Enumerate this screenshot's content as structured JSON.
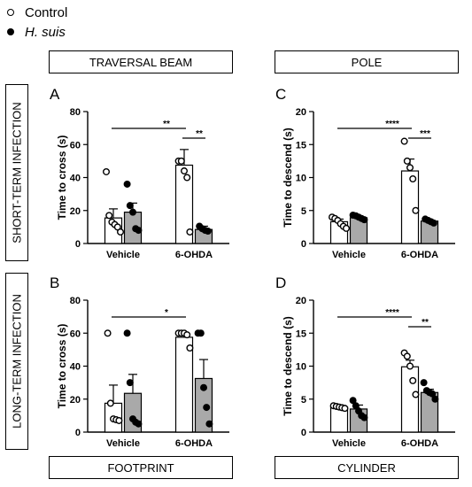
{
  "legend": {
    "control": "Control",
    "infected": "H. suis"
  },
  "headers": {
    "top_left": "TRAVERSAL BEAM",
    "top_right": "POLE",
    "bottom_left": "FOOTPRINT",
    "bottom_right": "CYLINDER",
    "row_top": "SHORT-TERM INFECTION",
    "row_bottom": "LONG-TERM INFECTION"
  },
  "chart_data": [
    {
      "type": "bar",
      "panel_letter": "A",
      "ylabel": "Time to cross (s)",
      "ylim": [
        0,
        80
      ],
      "yticks": [
        0,
        20,
        40,
        60,
        80
      ],
      "categories": [
        "Vehicle",
        "6-OHDA"
      ],
      "series": [
        {
          "name": "Control",
          "means": [
            15.5,
            47.5
          ],
          "sem": [
            5.5,
            9.5
          ],
          "points": [
            [
              43.5,
              17,
              13,
              11.5,
              10,
              7
            ],
            [
              50,
              50,
              44,
              40,
              7
            ]
          ]
        },
        {
          "name": "H. suis",
          "means": [
            19,
            8.5
          ],
          "sem": [
            5.5,
            2
          ],
          "points": [
            [
              36,
              23,
              19,
              9,
              8
            ],
            [
              10.5,
              9,
              8,
              7.5
            ]
          ]
        }
      ],
      "significance": [
        {
          "label": "**",
          "from": [
            0,
            0
          ],
          "to": [
            1,
            0
          ]
        },
        {
          "label": "**",
          "from": [
            1,
            0
          ],
          "to": [
            1,
            1
          ]
        }
      ]
    },
    {
      "type": "bar",
      "panel_letter": "C",
      "ylabel": "Time to descend (s)",
      "ylim": [
        0,
        20
      ],
      "yticks": [
        0,
        5,
        10,
        15,
        20
      ],
      "categories": [
        "Vehicle",
        "6-OHDA"
      ],
      "series": [
        {
          "name": "Control",
          "means": [
            3.3,
            11
          ],
          "sem": [
            0.4,
            1.8
          ],
          "points": [
            [
              4,
              3.8,
              3.5,
              3,
              2.6,
              2.3
            ],
            [
              15.5,
              12.5,
              11.5,
              9.8,
              5
            ]
          ]
        },
        {
          "name": "H. suis",
          "means": [
            3.9,
            3.4
          ],
          "sem": [
            0.2,
            0.2
          ],
          "points": [
            [
              4.3,
              4.2,
              4,
              3.8,
              3.6
            ],
            [
              3.7,
              3.5,
              3.3,
              3.1
            ]
          ]
        }
      ],
      "significance": [
        {
          "label": "****",
          "from": [
            0,
            0
          ],
          "to": [
            1,
            0
          ]
        },
        {
          "label": "***",
          "from": [
            1,
            0
          ],
          "to": [
            1,
            1
          ]
        }
      ]
    },
    {
      "type": "bar",
      "panel_letter": "B",
      "ylabel": "Time to cross (s)",
      "ylim": [
        0,
        80
      ],
      "yticks": [
        0,
        20,
        40,
        60,
        80
      ],
      "categories": [
        "Vehicle",
        "6-OHDA"
      ],
      "series": [
        {
          "name": "Control",
          "means": [
            17.5,
            57.5
          ],
          "sem": [
            11,
            2
          ],
          "points": [
            [
              60,
              17.5,
              8,
              7.5,
              7
            ],
            [
              60,
              60,
              60,
              59,
              51
            ]
          ]
        },
        {
          "name": "H. suis",
          "means": [
            23.5,
            32.5
          ],
          "sem": [
            11.5,
            11.5
          ],
          "points": [
            [
              60,
              30,
              8,
              6,
              5
            ],
            [
              60,
              60,
              27,
              15,
              5
            ]
          ]
        }
      ],
      "significance": [
        {
          "label": "*",
          "from": [
            0,
            0
          ],
          "to": [
            1,
            0
          ]
        }
      ]
    },
    {
      "type": "bar",
      "panel_letter": "D",
      "ylabel": "Time to descend (s)",
      "ylim": [
        0,
        20
      ],
      "yticks": [
        0,
        5,
        10,
        15,
        20
      ],
      "categories": [
        "Vehicle",
        "6-OHDA"
      ],
      "series": [
        {
          "name": "Control",
          "means": [
            3.8,
            9.9
          ],
          "sem": [
            0.2,
            1
          ],
          "points": [
            [
              4,
              3.9,
              3.8,
              3.7,
              3.6
            ],
            [
              12,
              11.5,
              10,
              7.8,
              5.7
            ]
          ]
        },
        {
          "name": "H. suis",
          "means": [
            3.5,
            6
          ],
          "sem": [
            0.6,
            0.5
          ],
          "points": [
            [
              4.8,
              4,
              3.2,
              2.5,
              2.2
            ],
            [
              7.5,
              6.3,
              6,
              5.8,
              5
            ]
          ]
        }
      ],
      "significance": [
        {
          "label": "****",
          "from": [
            0,
            0
          ],
          "to": [
            1,
            0
          ]
        },
        {
          "label": "**",
          "from": [
            1,
            0
          ],
          "to": [
            1,
            1
          ]
        }
      ]
    }
  ]
}
